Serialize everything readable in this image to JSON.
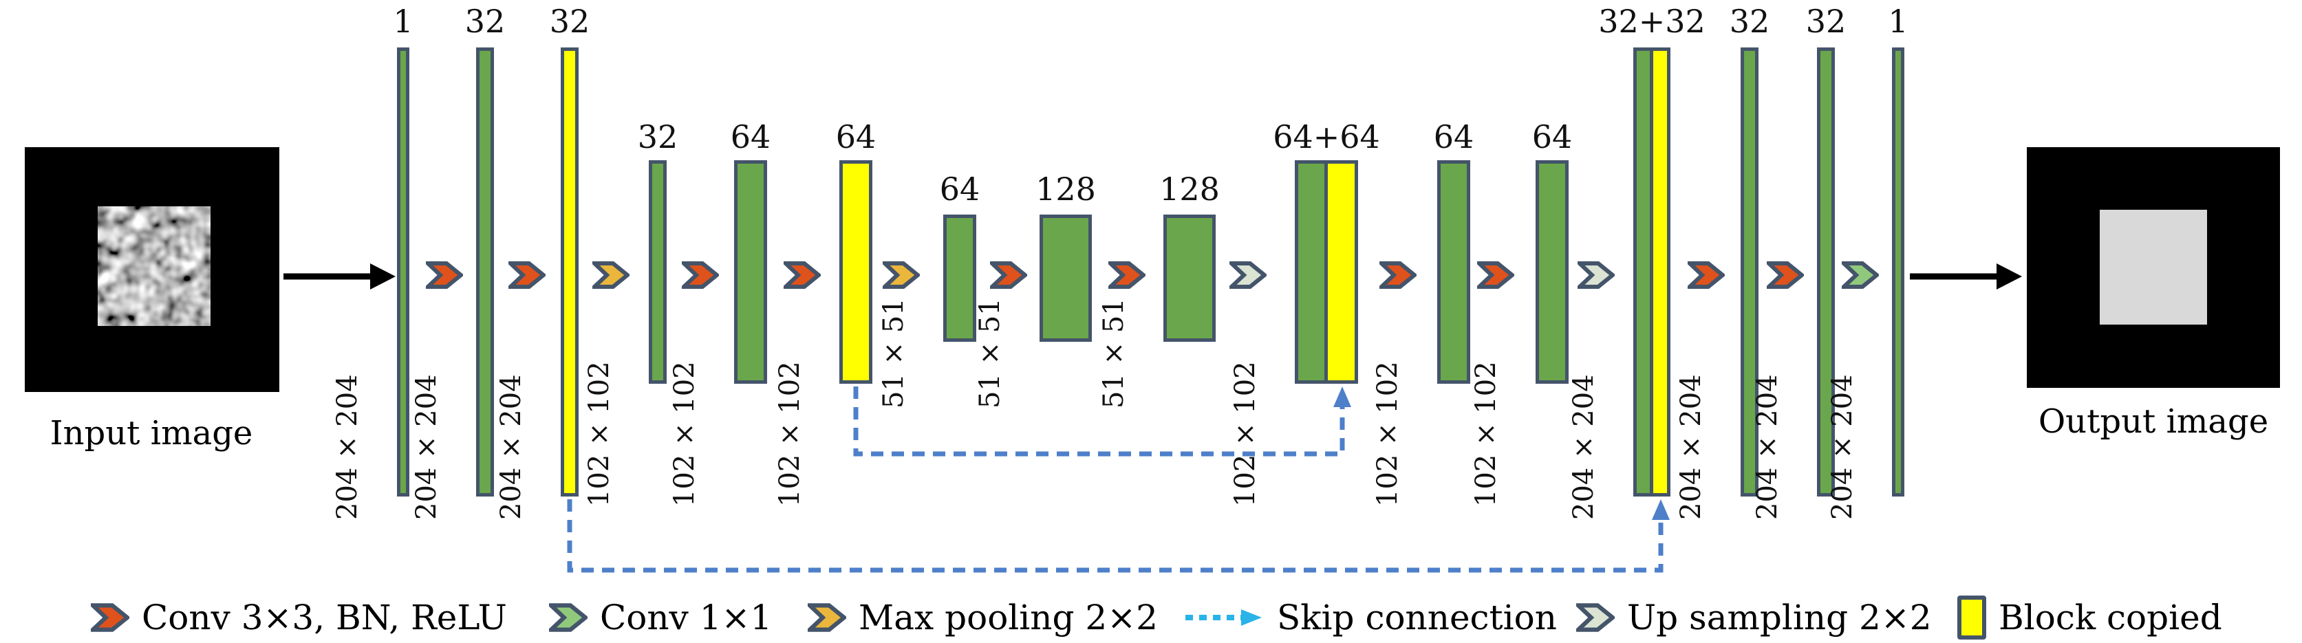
{
  "diagram": {
    "input": {
      "caption": "Input image"
    },
    "output": {
      "caption": "Output image"
    },
    "layers": [
      {
        "channels": "1",
        "size": "204 × 204",
        "level": 0,
        "blocks": [
          "green"
        ]
      },
      {
        "channels": "32",
        "size": "204 × 204",
        "level": 0,
        "blocks": [
          "green"
        ]
      },
      {
        "channels": "32",
        "size": "204 × 204",
        "level": 0,
        "blocks": [
          "yellow"
        ]
      },
      {
        "channels": "32",
        "size": "102 × 102",
        "level": 1,
        "blocks": [
          "green"
        ]
      },
      {
        "channels": "64",
        "size": "102 × 102",
        "level": 1,
        "blocks": [
          "green"
        ]
      },
      {
        "channels": "64",
        "size": "102 × 102",
        "level": 1,
        "blocks": [
          "yellow"
        ]
      },
      {
        "channels": "64",
        "size": "51 × 51",
        "level": 2,
        "blocks": [
          "green"
        ]
      },
      {
        "channels": "128",
        "size": "51 × 51",
        "level": 2,
        "blocks": [
          "green"
        ]
      },
      {
        "channels": "128",
        "size": "51 × 51",
        "level": 2,
        "blocks": [
          "green"
        ]
      },
      {
        "channels": "64+64",
        "size": "102 × 102",
        "level": 1,
        "blocks": [
          "green",
          "yellow"
        ]
      },
      {
        "channels": "64",
        "size": "102 × 102",
        "level": 1,
        "blocks": [
          "green"
        ]
      },
      {
        "channels": "64",
        "size": "102 × 102",
        "level": 1,
        "blocks": [
          "green"
        ]
      },
      {
        "channels": "32+32",
        "size": "204 × 204",
        "level": 0,
        "blocks": [
          "green",
          "yellow"
        ]
      },
      {
        "channels": "32",
        "size": "204 × 204",
        "level": 0,
        "blocks": [
          "green"
        ]
      },
      {
        "channels": "32",
        "size": "204 × 204",
        "level": 0,
        "blocks": [
          "green"
        ]
      },
      {
        "channels": "1",
        "size": "204 × 204",
        "level": 0,
        "blocks": [
          "green"
        ]
      }
    ],
    "ops": [
      "conv3",
      "conv3",
      "maxpool",
      "conv3",
      "conv3",
      "maxpool",
      "conv3",
      "conv3",
      "upsample",
      "conv3",
      "conv3",
      "upsample",
      "conv3",
      "conv3",
      "conv1"
    ],
    "skip_connections": [
      {
        "from_layer": 5,
        "to_layer": 9
      },
      {
        "from_layer": 2,
        "to_layer": 12
      }
    ],
    "legend": [
      {
        "swatch": "chevron",
        "type": "conv3",
        "label": "Conv 3×3, BN, ReLU"
      },
      {
        "swatch": "chevron",
        "type": "conv1",
        "label": "Conv 1×1"
      },
      {
        "swatch": "chevron",
        "type": "maxpool",
        "label": "Max pooling 2×2"
      },
      {
        "swatch": "dashed-arrow",
        "type": "skip",
        "label": "Skip connection"
      },
      {
        "swatch": "chevron",
        "type": "upsample",
        "label": "Up sampling 2×2"
      },
      {
        "swatch": "rect",
        "type": "copied",
        "label": "Block copied"
      }
    ],
    "colors": {
      "block_green": "#6aa64b",
      "block_copied_yellow": "#ffff00",
      "border_slate": "#44546a",
      "conv3_orange": "#df521c",
      "conv1_green": "#90c97c",
      "maxpool_gold": "#eab63c",
      "upsample_sage": "#dbe3d3",
      "skip_blue": "#4e7fc9",
      "legend_skip_cyan": "#29b3e8",
      "output_square_gray": "#d9d9d9"
    }
  }
}
